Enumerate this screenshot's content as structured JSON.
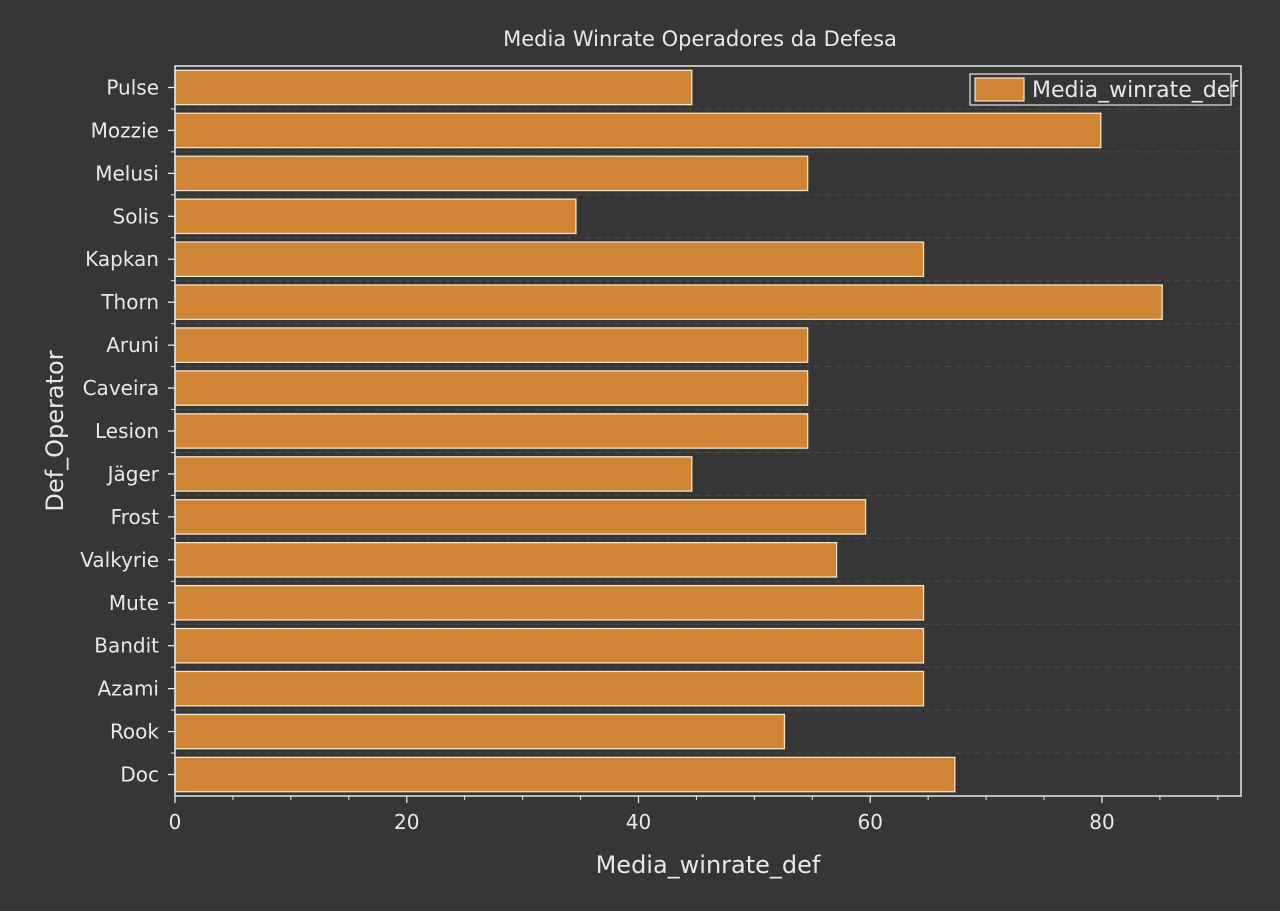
{
  "chart_data": {
    "type": "bar",
    "orientation": "horizontal",
    "title": "Media Winrate Operadores da Defesa",
    "xlabel": "Media_winrate_def",
    "ylabel": "Def_Operator",
    "xlim": [
      0,
      92
    ],
    "x_ticks": [
      0,
      20,
      40,
      60,
      80
    ],
    "categories": [
      "Pulse",
      "Mozzie",
      "Melusi",
      "Solis",
      "Kapkan",
      "Thorn",
      "Aruni",
      "Caveira",
      "Lesion",
      "Jäger",
      "Frost",
      "Valkyrie",
      "Mute",
      "Bandit",
      "Azami",
      "Rook",
      "Doc"
    ],
    "series": [
      {
        "name": "Media_winrate_def",
        "values": [
          44.6,
          79.9,
          54.6,
          34.6,
          64.6,
          85.2,
          54.6,
          54.6,
          54.6,
          44.6,
          59.6,
          57.1,
          64.6,
          64.6,
          64.6,
          52.6,
          67.3
        ]
      }
    ],
    "legend": "top-right",
    "grid": "horizontal-dashed",
    "colors": {
      "background": "#363636",
      "bar_fill": "#D08535",
      "bar_edge": "#F3E3CE",
      "axis": "#E8E8E8",
      "text": "#E8E8E8",
      "grid": "#4A4A4A"
    }
  }
}
